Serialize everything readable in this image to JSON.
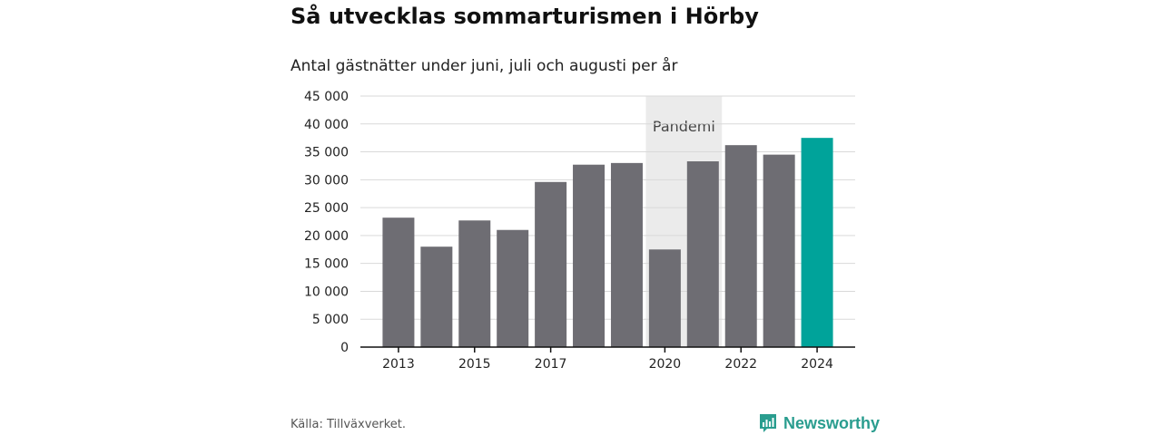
{
  "title": "Så utvecklas sommarturismen i Hörby",
  "subtitle": "Antal gästnätter under juni, juli och augusti per år",
  "source": "Källa: Tillväxverket.",
  "brand": {
    "name": "Newsworthy",
    "icon": "newsworthy-logo-icon",
    "color": "#2a9d8f"
  },
  "colors": {
    "bar": "#6e6d73",
    "highlight": "#00a39a",
    "band": "#ebebeb",
    "grid": "#d9d9d9"
  },
  "chart_data": {
    "type": "bar",
    "categories": [
      "2013",
      "2014",
      "2015",
      "2016",
      "2017",
      "2018",
      "2019",
      "2020",
      "2021",
      "2022",
      "2023",
      "2024"
    ],
    "values": [
      23200,
      18000,
      22700,
      21000,
      29600,
      32700,
      33000,
      17500,
      33300,
      36200,
      34500,
      37500
    ],
    "highlight_category": "2024",
    "x_tick_labels": [
      "2013",
      "2015",
      "2017",
      "2020",
      "2022",
      "2024"
    ],
    "y_ticks": [
      0,
      5000,
      10000,
      15000,
      20000,
      25000,
      30000,
      35000,
      40000,
      45000
    ],
    "y_tick_labels": [
      "0",
      "5 000",
      "10 000",
      "15 000",
      "20 000",
      "25 000",
      "30 000",
      "35 000",
      "40 000",
      "45 000"
    ],
    "ylim": [
      0,
      45000
    ],
    "grid": true,
    "annotation": {
      "label": "Pandemi",
      "from": "2020",
      "to": "2021"
    }
  }
}
